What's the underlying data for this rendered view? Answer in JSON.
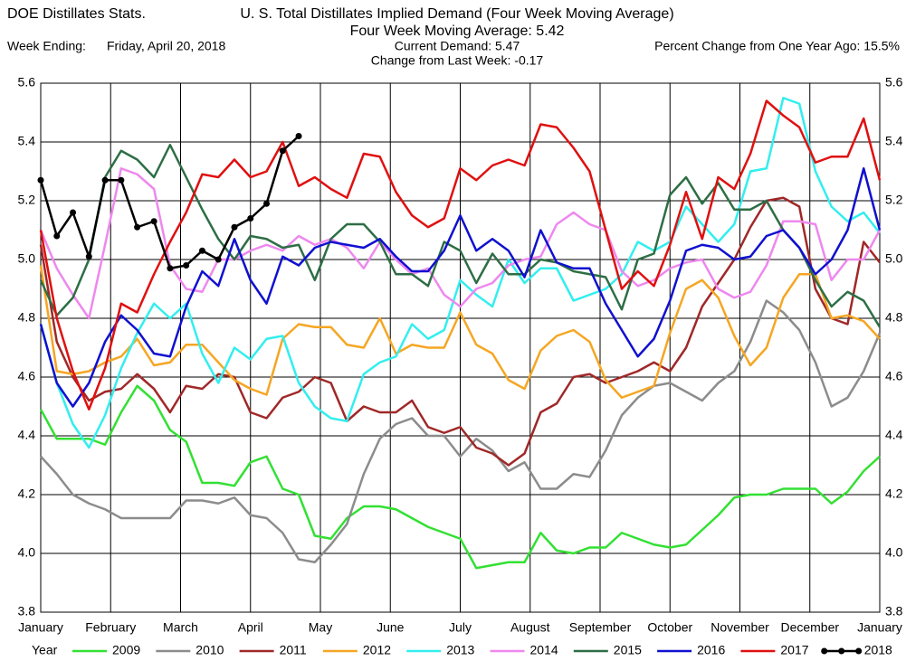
{
  "chart_data": {
    "type": "line",
    "source": "DOE Distillates Stats.",
    "title": "U. S. Total Distillates Implied Demand  (Four Week Moving Average)",
    "subtitle": "Four Week Moving Average:  5.42",
    "week_ending_label": "Week Ending:",
    "week_ending": "Friday, April 20, 2018",
    "current_demand": "Current Demand:  5.47",
    "change": "Change from Last Week: -0.17",
    "percent_change": "Percent Change from One Year Ago:  15.5%",
    "legend_title": "Year",
    "legend": "bottom",
    "grid": true,
    "xlim": [
      0,
      12
    ],
    "xticks": [
      {
        "value": 0,
        "label": "January"
      },
      {
        "value": 1,
        "label": "February"
      },
      {
        "value": 2,
        "label": "March"
      },
      {
        "value": 3,
        "label": "April"
      },
      {
        "value": 4,
        "label": "May"
      },
      {
        "value": 5,
        "label": "June"
      },
      {
        "value": 6,
        "label": "July"
      },
      {
        "value": 7,
        "label": "August"
      },
      {
        "value": 8,
        "label": "September"
      },
      {
        "value": 9,
        "label": "October"
      },
      {
        "value": 10,
        "label": "November"
      },
      {
        "value": 11,
        "label": "December"
      },
      {
        "value": 12,
        "label": "January"
      }
    ],
    "ylim": [
      3.8,
      5.6
    ],
    "yticks": [
      3.8,
      {
        "value": 4,
        "label": "4.0"
      },
      4.2,
      4.4,
      4.6,
      4.8,
      {
        "value": 5,
        "label": "5.0"
      },
      5.2,
      5.4,
      5.6
    ],
    "x": [
      0,
      0.23,
      0.46,
      0.69,
      0.92,
      1.15,
      1.38,
      1.62,
      1.85,
      2.08,
      2.31,
      2.54,
      2.77,
      3.0,
      3.23,
      3.46,
      3.69,
      3.92,
      4.15,
      4.38,
      4.62,
      4.85,
      5.08,
      5.31,
      5.54,
      5.77,
      6.0,
      6.23,
      6.46,
      6.69,
      6.92,
      7.15,
      7.38,
      7.62,
      7.85,
      8.08,
      8.31,
      8.54,
      8.77,
      9.0,
      9.23,
      9.46,
      9.69,
      9.92,
      10.15,
      10.38,
      10.62,
      10.85,
      11.08,
      11.31,
      11.54,
      11.77,
      12.0
    ],
    "series": [
      {
        "name": "2009",
        "color": "#33e033",
        "values": [
          4.49,
          4.39,
          4.39,
          4.39,
          4.37,
          4.48,
          4.57,
          4.52,
          4.42,
          4.38,
          4.24,
          4.24,
          4.23,
          4.31,
          4.33,
          4.22,
          4.2,
          4.06,
          4.05,
          4.12,
          4.16,
          4.16,
          4.15,
          4.12,
          4.09,
          4.07,
          4.05,
          3.95,
          3.96,
          3.97,
          3.97,
          4.07,
          4.01,
          4.0,
          4.02,
          4.02,
          4.07,
          4.05,
          4.03,
          4.02,
          4.03,
          4.08,
          4.13,
          4.19,
          4.2,
          4.2,
          4.22,
          4.22,
          4.22,
          4.17,
          4.21,
          4.28,
          4.33
        ]
      },
      {
        "name": "2010",
        "color": "#8c8c8c",
        "values": [
          4.33,
          4.27,
          4.2,
          4.17,
          4.15,
          4.12,
          4.12,
          4.12,
          4.12,
          4.18,
          4.18,
          4.17,
          4.19,
          4.13,
          4.12,
          4.07,
          3.98,
          3.97,
          4.03,
          4.1,
          4.27,
          4.39,
          4.44,
          4.46,
          4.4,
          4.4,
          4.33,
          4.39,
          4.35,
          4.28,
          4.31,
          4.22,
          4.22,
          4.27,
          4.26,
          4.35,
          4.47,
          4.53,
          4.57,
          4.58,
          4.55,
          4.52,
          4.58,
          4.62,
          4.72,
          4.86,
          4.82,
          4.76,
          4.65,
          4.5,
          4.53,
          4.62,
          4.75
        ]
      },
      {
        "name": "2011",
        "color": "#a02828",
        "values": [
          5.05,
          4.72,
          4.6,
          4.52,
          4.55,
          4.56,
          4.61,
          4.56,
          4.48,
          4.57,
          4.56,
          4.61,
          4.6,
          4.48,
          4.46,
          4.53,
          4.55,
          4.6,
          4.58,
          4.45,
          4.5,
          4.48,
          4.48,
          4.52,
          4.43,
          4.41,
          4.43,
          4.36,
          4.34,
          4.3,
          4.34,
          4.48,
          4.51,
          4.6,
          4.61,
          4.58,
          4.6,
          4.62,
          4.65,
          4.62,
          4.7,
          4.84,
          4.92,
          5.0,
          5.11,
          5.2,
          5.21,
          5.18,
          4.9,
          4.8,
          4.78,
          5.06,
          4.99
        ]
      },
      {
        "name": "2012",
        "color": "#f5a623",
        "values": [
          4.98,
          4.62,
          4.61,
          4.62,
          4.65,
          4.67,
          4.73,
          4.64,
          4.65,
          4.71,
          4.71,
          4.65,
          4.59,
          4.56,
          4.54,
          4.73,
          4.78,
          4.77,
          4.77,
          4.71,
          4.7,
          4.8,
          4.68,
          4.71,
          4.7,
          4.7,
          4.82,
          4.71,
          4.68,
          4.59,
          4.56,
          4.69,
          4.74,
          4.76,
          4.72,
          4.59,
          4.53,
          4.55,
          4.57,
          4.75,
          4.9,
          4.93,
          4.87,
          4.74,
          4.64,
          4.7,
          4.87,
          4.95,
          4.95,
          4.8,
          4.81,
          4.79,
          4.73
        ]
      },
      {
        "name": "2013",
        "color": "#33eeee",
        "values": [
          4.78,
          4.58,
          4.44,
          4.36,
          4.47,
          4.63,
          4.75,
          4.85,
          4.8,
          4.85,
          4.68,
          4.58,
          4.7,
          4.66,
          4.73,
          4.74,
          4.58,
          4.5,
          4.46,
          4.45,
          4.61,
          4.65,
          4.67,
          4.78,
          4.73,
          4.76,
          4.93,
          4.88,
          4.84,
          5.0,
          4.92,
          4.97,
          4.97,
          4.86,
          4.88,
          4.9,
          4.95,
          5.06,
          5.03,
          5.06,
          5.18,
          5.12,
          5.06,
          5.12,
          5.3,
          5.31,
          5.55,
          5.53,
          5.3,
          5.18,
          5.13,
          5.16,
          5.09
        ]
      },
      {
        "name": "2014",
        "color": "#ee88ee",
        "values": [
          5.1,
          4.97,
          4.88,
          4.8,
          5.05,
          5.31,
          5.29,
          5.24,
          4.98,
          4.9,
          4.89,
          5.0,
          5.0,
          5.03,
          5.05,
          5.03,
          5.08,
          5.05,
          5.07,
          5.04,
          4.97,
          5.06,
          5.0,
          4.95,
          4.97,
          4.88,
          4.84,
          4.9,
          4.92,
          4.98,
          5.0,
          5.01,
          5.12,
          5.16,
          5.12,
          5.1,
          4.96,
          4.91,
          4.93,
          4.97,
          4.99,
          5.0,
          4.9,
          4.87,
          4.89,
          4.98,
          5.13,
          5.13,
          5.12,
          4.93,
          5.0,
          5.0,
          5.1
        ]
      },
      {
        "name": "2015",
        "color": "#2e6e45",
        "values": [
          4.93,
          4.81,
          4.87,
          5.0,
          5.28,
          5.37,
          5.34,
          5.28,
          5.39,
          5.28,
          5.17,
          5.07,
          5.0,
          5.08,
          5.07,
          5.04,
          5.05,
          4.93,
          5.07,
          5.12,
          5.12,
          5.06,
          4.95,
          4.95,
          4.91,
          5.06,
          5.03,
          4.92,
          5.02,
          4.95,
          4.95,
          5.0,
          4.99,
          4.96,
          4.95,
          4.94,
          4.83,
          5.0,
          5.02,
          5.22,
          5.28,
          5.19,
          5.26,
          5.17,
          5.17,
          5.2,
          5.1,
          5.04,
          4.93,
          4.84,
          4.89,
          4.86,
          4.77
        ]
      },
      {
        "name": "2016",
        "color": "#1010d0",
        "values": [
          4.78,
          4.58,
          4.5,
          4.58,
          4.72,
          4.81,
          4.76,
          4.68,
          4.67,
          4.84,
          4.96,
          4.91,
          5.07,
          4.93,
          4.85,
          5.01,
          4.98,
          5.04,
          5.06,
          5.05,
          5.04,
          5.07,
          5.01,
          4.96,
          4.96,
          5.03,
          5.15,
          5.03,
          5.07,
          5.03,
          4.94,
          5.1,
          4.99,
          4.97,
          4.97,
          4.85,
          4.76,
          4.67,
          4.73,
          4.86,
          5.03,
          5.05,
          5.04,
          5.0,
          5.01,
          5.08,
          5.1,
          5.04,
          4.95,
          5.0,
          5.1,
          5.31,
          5.1
        ]
      },
      {
        "name": "2017",
        "color": "#e01010",
        "values": [
          5.1,
          4.8,
          4.62,
          4.49,
          4.63,
          4.85,
          4.82,
          4.95,
          5.06,
          5.16,
          5.29,
          5.28,
          5.34,
          5.28,
          5.3,
          5.4,
          5.25,
          5.28,
          5.24,
          5.21,
          5.36,
          5.35,
          5.23,
          5.15,
          5.11,
          5.14,
          5.31,
          5.27,
          5.32,
          5.34,
          5.32,
          5.46,
          5.45,
          5.38,
          5.3,
          5.1,
          4.9,
          4.96,
          4.91,
          5.05,
          5.23,
          5.07,
          5.28,
          5.24,
          5.36,
          5.54,
          5.49,
          5.45,
          5.33,
          5.35,
          5.35,
          5.48,
          5.27
        ]
      },
      {
        "name": "2018",
        "color": "#000000",
        "marker": "circle",
        "values": [
          5.27,
          5.08,
          5.16,
          5.01,
          5.27,
          5.27,
          5.11,
          5.13,
          4.97,
          4.98,
          5.03,
          5.0,
          5.11,
          5.14,
          5.19,
          5.37,
          5.42,
          null,
          null,
          null,
          null,
          null,
          null,
          null,
          null,
          null,
          null,
          null,
          null,
          null,
          null,
          null,
          null,
          null,
          null,
          null,
          null,
          null,
          null,
          null,
          null,
          null,
          null,
          null,
          null,
          null,
          null,
          null,
          null,
          null,
          null,
          null,
          null
        ]
      }
    ]
  }
}
